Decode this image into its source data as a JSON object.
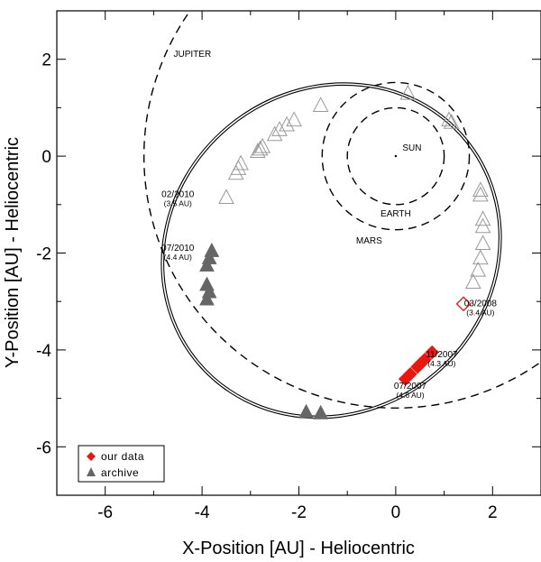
{
  "chart_data": {
    "type": "scatter",
    "title": "",
    "xlabel": "X-Position [AU] - Heliocentric",
    "ylabel": "Y-Position [AU] - Heliocentric",
    "xlim": [
      -7,
      3
    ],
    "ylim": [
      -7,
      3
    ],
    "x_ticks": [
      -6,
      -4,
      -2,
      0,
      2
    ],
    "x_tick_labels": [
      "-6",
      "-4",
      "-2",
      "0",
      "2"
    ],
    "y_ticks": [
      2,
      0,
      -2,
      -4,
      -6
    ],
    "y_tick_labels": [
      "2",
      "0",
      "-2",
      "-4",
      "-6"
    ],
    "grid": false,
    "legend_position": "bottom-left",
    "sun": {
      "label": "SUN",
      "x": 0,
      "y": 0
    },
    "planet_orbits": [
      {
        "name": "earth",
        "label": "EARTH",
        "radius_au": 1.0,
        "label_x": 0.0,
        "label_y": -1.25
      },
      {
        "name": "mars",
        "label": "MARS",
        "radius_au": 1.52,
        "label_x": -0.55,
        "label_y": -1.8
      },
      {
        "name": "jupiter",
        "label": "JUPITER",
        "radius_au": 5.2,
        "label_x": -4.2,
        "label_y": 2.05
      }
    ],
    "comet_orbit": {
      "center_x": -1.33,
      "center_y": -1.95,
      "semi_major_au": 3.57,
      "semi_minor_au": 3.3,
      "rotation_deg": -40
    },
    "series": [
      {
        "name": "our data",
        "marker": "diamond",
        "color": "#e8170f",
        "filled": [
          [
            0.2,
            -4.6
          ],
          [
            0.3,
            -4.5
          ],
          [
            0.45,
            -4.35
          ],
          [
            0.5,
            -4.3
          ],
          [
            0.6,
            -4.2
          ],
          [
            0.75,
            -4.05
          ]
        ],
        "open": [
          [
            1.4,
            -3.05
          ]
        ]
      },
      {
        "name": "archive",
        "marker": "triangle",
        "color": "#666666",
        "filled": [
          [
            -3.8,
            -1.95
          ],
          [
            -3.85,
            -2.1
          ],
          [
            -3.9,
            -2.25
          ],
          [
            -3.9,
            -2.65
          ],
          [
            -3.85,
            -2.8
          ],
          [
            -3.9,
            -2.95
          ],
          [
            -1.85,
            -5.28
          ],
          [
            -1.55,
            -5.3
          ]
        ],
        "open": [
          [
            -3.5,
            -0.85
          ],
          [
            -3.3,
            -0.35
          ],
          [
            -3.25,
            -0.25
          ],
          [
            -3.2,
            -0.15
          ],
          [
            -2.85,
            0.1
          ],
          [
            -2.8,
            0.15
          ],
          [
            -2.75,
            0.2
          ],
          [
            -2.5,
            0.45
          ],
          [
            -2.4,
            0.55
          ],
          [
            -2.25,
            0.65
          ],
          [
            -2.1,
            0.75
          ],
          [
            -1.55,
            1.05
          ],
          [
            0.25,
            1.3
          ],
          [
            1.1,
            0.75
          ],
          [
            1.15,
            0.7
          ],
          [
            1.75,
            -0.7
          ],
          [
            1.75,
            -0.8
          ],
          [
            1.8,
            -1.3
          ],
          [
            1.8,
            -1.45
          ],
          [
            1.8,
            -1.8
          ],
          [
            1.75,
            -2.1
          ],
          [
            1.7,
            -2.35
          ],
          [
            1.6,
            -2.6
          ]
        ]
      }
    ],
    "annotations": [
      {
        "main": "02/2010",
        "sub": "(3.5 AU)",
        "x": -4.5,
        "y": -0.85
      },
      {
        "main": "07/2010",
        "sub": "(4.4 AU)",
        "x": -4.5,
        "y": -1.95
      },
      {
        "main": "03/2008",
        "sub": "(3.4 AU)",
        "x": 1.75,
        "y": -3.1
      },
      {
        "main": "11/2007",
        "sub": "(4.3 AU)",
        "x": 0.95,
        "y": -4.15
      },
      {
        "main": "07/2007",
        "sub": "(4.6 AU)",
        "x": 0.3,
        "y": -4.8
      }
    ],
    "legend": [
      {
        "label": "our data",
        "marker": "diamond",
        "color": "#e8170f"
      },
      {
        "label": "archive",
        "marker": "triangle",
        "color": "#666666"
      }
    ]
  }
}
